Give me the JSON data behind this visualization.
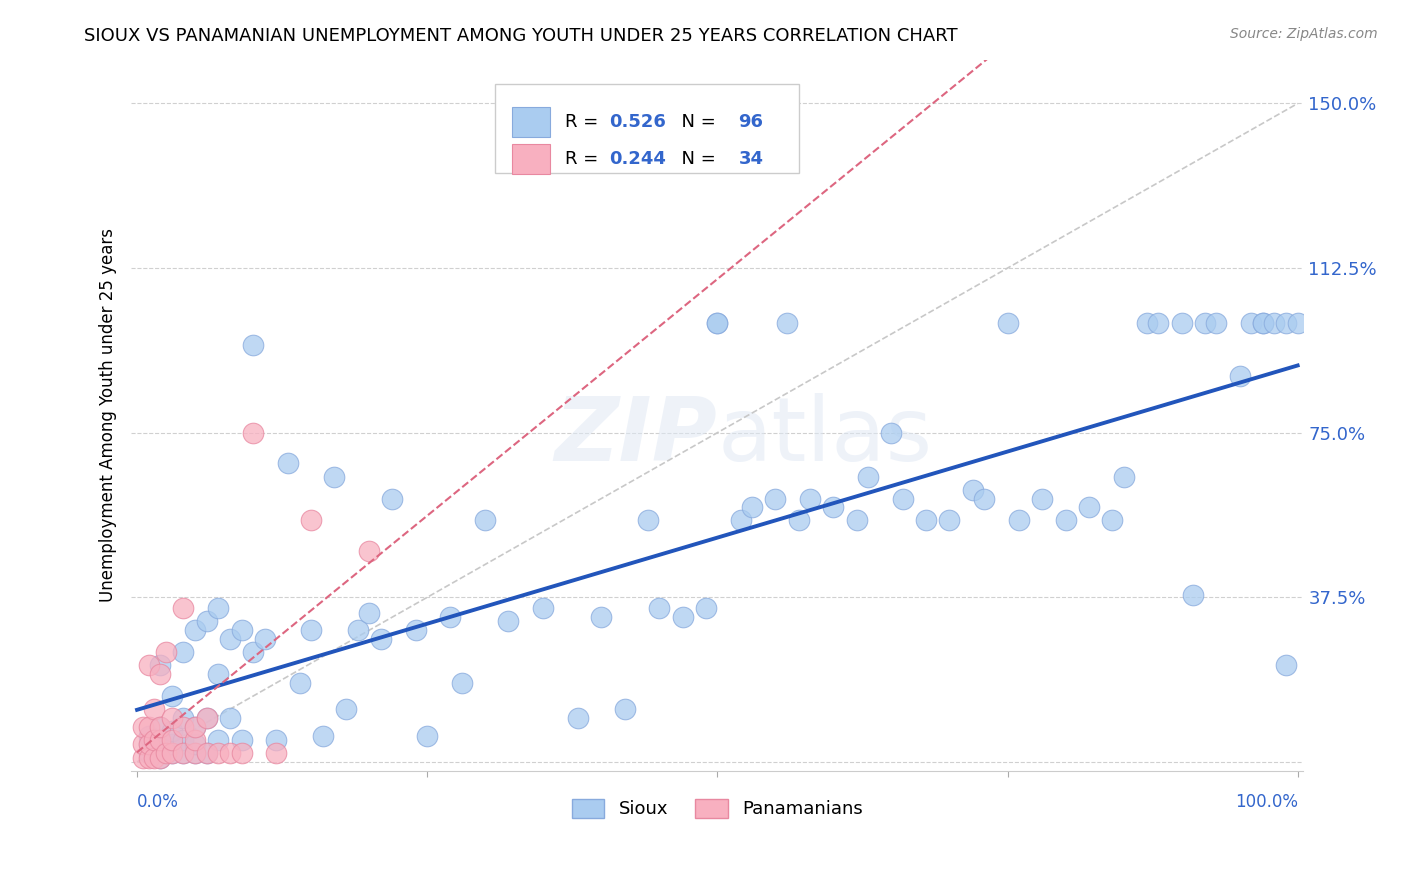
{
  "title": "SIOUX VS PANAMANIAN UNEMPLOYMENT AMONG YOUTH UNDER 25 YEARS CORRELATION CHART",
  "source": "Source: ZipAtlas.com",
  "ylabel": "Unemployment Among Youth under 25 years",
  "ymin": -0.02,
  "ymax": 1.6,
  "xmin": -0.005,
  "xmax": 1.005,
  "sioux_color": "#aaccf0",
  "sioux_edge_color": "#88aadd",
  "panama_color": "#f8b0c0",
  "panama_edge_color": "#e888a0",
  "blue_line_color": "#2255bb",
  "pink_line_color": "#dd6680",
  "gray_diag_color": "#c8c8c8",
  "legend_label_sioux": "Sioux",
  "legend_label_panama": "Panamanians",
  "blue_line_x0": 0.0,
  "blue_line_y0": 0.06,
  "blue_line_x1": 1.0,
  "blue_line_y1": 0.65,
  "pink_line_x0": 0.0,
  "pink_line_y0": 0.02,
  "pink_line_x1": 0.22,
  "pink_line_y1": 0.48,
  "sioux_x": [
    0.01,
    0.01,
    0.01,
    0.02,
    0.02,
    0.02,
    0.02,
    0.02,
    0.03,
    0.03,
    0.03,
    0.03,
    0.04,
    0.04,
    0.04,
    0.04,
    0.05,
    0.05,
    0.05,
    0.05,
    0.06,
    0.06,
    0.06,
    0.07,
    0.07,
    0.07,
    0.08,
    0.08,
    0.09,
    0.09,
    0.1,
    0.1,
    0.11,
    0.12,
    0.13,
    0.14,
    0.15,
    0.16,
    0.17,
    0.18,
    0.19,
    0.2,
    0.21,
    0.22,
    0.24,
    0.25,
    0.27,
    0.28,
    0.3,
    0.32,
    0.35,
    0.38,
    0.4,
    0.42,
    0.44,
    0.45,
    0.47,
    0.49,
    0.5,
    0.5,
    0.52,
    0.53,
    0.55,
    0.56,
    0.57,
    0.58,
    0.6,
    0.62,
    0.63,
    0.65,
    0.66,
    0.68,
    0.7,
    0.72,
    0.73,
    0.75,
    0.76,
    0.78,
    0.8,
    0.82,
    0.84,
    0.85,
    0.87,
    0.88,
    0.9,
    0.91,
    0.92,
    0.93,
    0.95,
    0.96,
    0.97,
    0.97,
    0.98,
    0.99,
    0.99,
    1.0
  ],
  "sioux_y": [
    0.02,
    0.04,
    0.06,
    0.01,
    0.03,
    0.05,
    0.08,
    0.22,
    0.02,
    0.04,
    0.07,
    0.15,
    0.02,
    0.05,
    0.1,
    0.25,
    0.02,
    0.04,
    0.08,
    0.3,
    0.02,
    0.1,
    0.32,
    0.05,
    0.2,
    0.35,
    0.1,
    0.28,
    0.05,
    0.3,
    0.95,
    0.25,
    0.28,
    0.05,
    0.68,
    0.18,
    0.3,
    0.06,
    0.65,
    0.12,
    0.3,
    0.34,
    0.28,
    0.6,
    0.3,
    0.06,
    0.33,
    0.18,
    0.55,
    0.32,
    0.35,
    0.1,
    0.33,
    0.12,
    0.55,
    0.35,
    0.33,
    0.35,
    1.0,
    1.0,
    0.55,
    0.58,
    0.6,
    1.0,
    0.55,
    0.6,
    0.58,
    0.55,
    0.65,
    0.75,
    0.6,
    0.55,
    0.55,
    0.62,
    0.6,
    1.0,
    0.55,
    0.6,
    0.55,
    0.58,
    0.55,
    0.65,
    1.0,
    1.0,
    1.0,
    0.38,
    1.0,
    1.0,
    0.88,
    1.0,
    1.0,
    1.0,
    1.0,
    1.0,
    0.22,
    1.0
  ],
  "panama_x": [
    0.005,
    0.005,
    0.005,
    0.01,
    0.01,
    0.01,
    0.01,
    0.015,
    0.015,
    0.015,
    0.02,
    0.02,
    0.02,
    0.02,
    0.025,
    0.025,
    0.03,
    0.03,
    0.03,
    0.04,
    0.04,
    0.04,
    0.05,
    0.05,
    0.05,
    0.06,
    0.06,
    0.07,
    0.08,
    0.09,
    0.1,
    0.12,
    0.15,
    0.2
  ],
  "panama_y": [
    0.01,
    0.04,
    0.08,
    0.01,
    0.04,
    0.08,
    0.22,
    0.01,
    0.05,
    0.12,
    0.01,
    0.05,
    0.08,
    0.2,
    0.02,
    0.25,
    0.02,
    0.05,
    0.1,
    0.02,
    0.08,
    0.35,
    0.02,
    0.05,
    0.08,
    0.02,
    0.1,
    0.02,
    0.02,
    0.02,
    0.75,
    0.02,
    0.55,
    0.48
  ]
}
